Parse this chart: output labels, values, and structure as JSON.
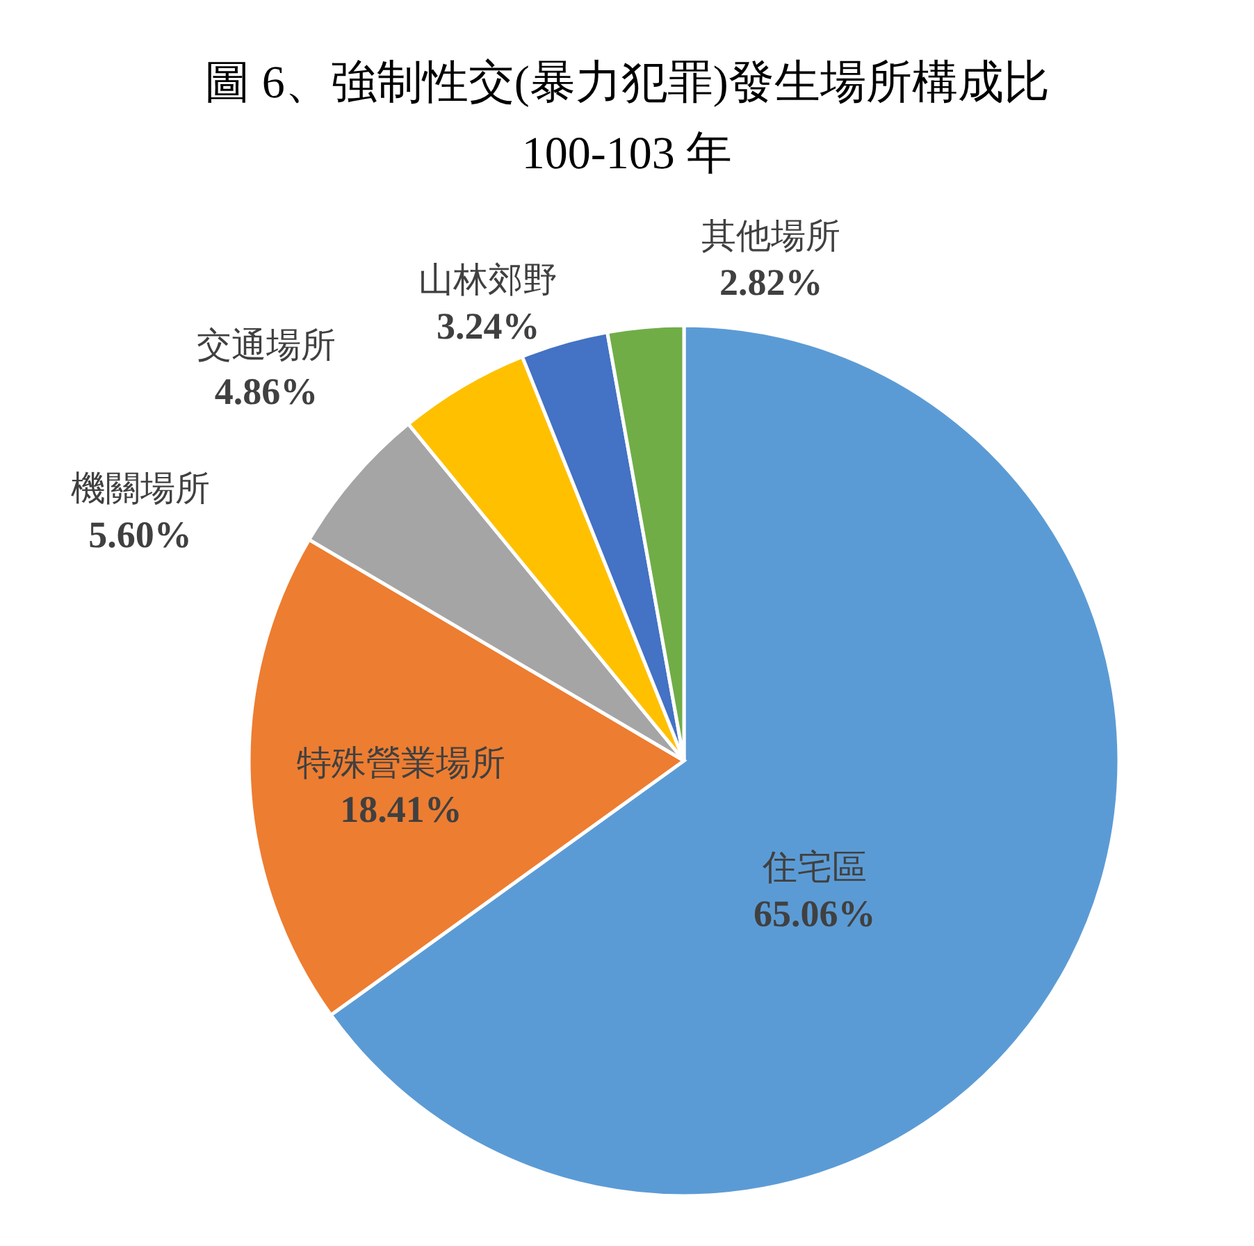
{
  "chart_data": {
    "type": "pie",
    "title": "圖 6、強制性交(暴力犯罪)發生場所構成比",
    "subtitle": "100-103 年",
    "categories": [
      "住宅區",
      "特殊營業場所",
      "機關場所",
      "交通場所",
      "山林郊野",
      "其他場所"
    ],
    "values": [
      65.06,
      18.41,
      5.6,
      4.86,
      3.24,
      2.82
    ],
    "colors": [
      "#5b9bd5",
      "#ed7d31",
      "#a5a5a5",
      "#ffc000",
      "#4472c4",
      "#70ad47"
    ],
    "value_labels": [
      "65.06%",
      "18.41%",
      "5.60%",
      "4.86%",
      "3.24%",
      "2.82%"
    ]
  }
}
